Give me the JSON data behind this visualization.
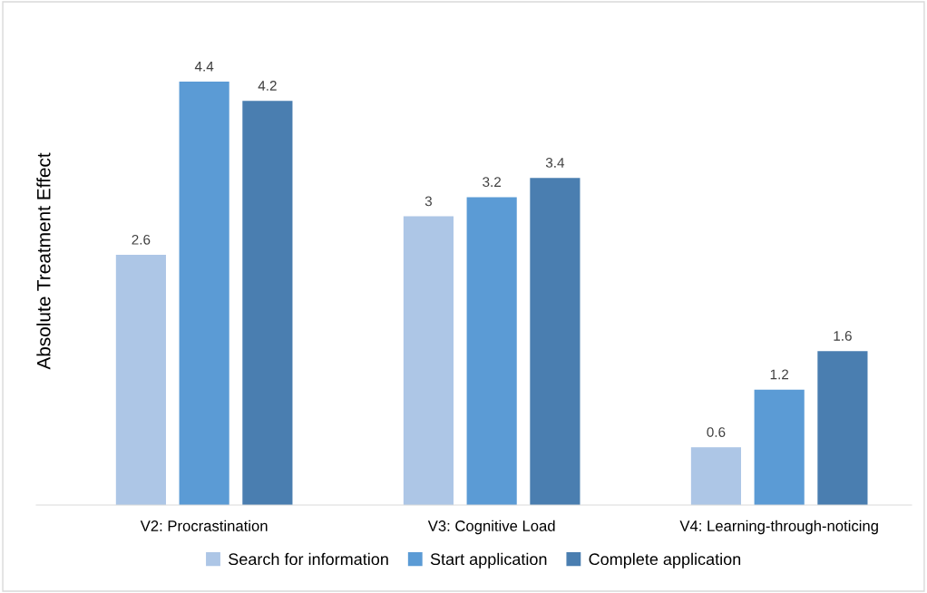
{
  "chart_data": {
    "type": "bar",
    "ylabel": "Absolute Treatment Effect",
    "categories": [
      "V2: Procrastination",
      "V3: Cognitive Load",
      "V4: Learning-through-noticing"
    ],
    "series": [
      {
        "name": "Search for information",
        "color": "#adc6e6",
        "values": [
          2.6,
          3,
          0.6
        ]
      },
      {
        "name": "Start application",
        "color": "#5b9bd5",
        "values": [
          4.4,
          3.2,
          1.2
        ]
      },
      {
        "name": "Complete application",
        "color": "#4a7eb0",
        "values": [
          4.2,
          3.4,
          1.6
        ]
      }
    ],
    "data_labels": true,
    "grid": false,
    "legend": "bottom"
  }
}
